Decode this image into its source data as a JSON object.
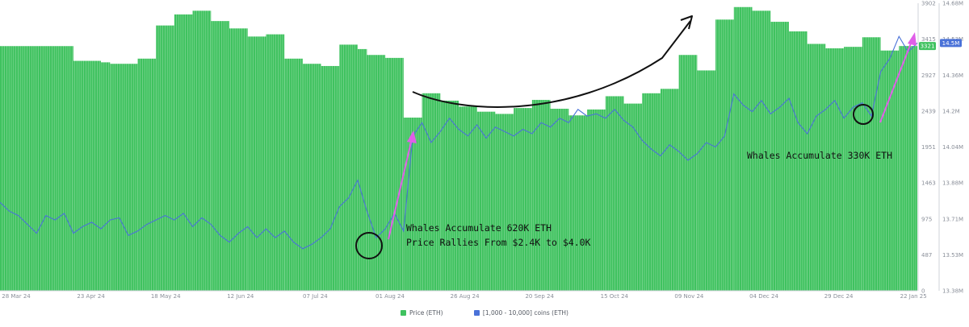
{
  "chart_data": {
    "type": "bar",
    "title": "",
    "xlabel": "",
    "ylabel": "",
    "x_ticks": [
      "28 Mar 24",
      "23 Apr 24",
      "18 May 24",
      "12 Jun 24",
      "07 Jul 24",
      "01 Aug 24",
      "26 Aug 24",
      "20 Sep 24",
      "15 Oct 24",
      "09 Nov 24",
      "04 Dec 24",
      "29 Dec 24",
      "22 Jan 25"
    ],
    "y_left": {
      "ticks": [
        "0",
        "487",
        "975",
        "1463",
        "1951",
        "2439",
        "2927",
        "3415",
        "3902"
      ],
      "ylim": [
        0,
        3902
      ]
    },
    "y_right": {
      "ticks": [
        "13.38M",
        "13.53M",
        "13.71M",
        "13.88M",
        "14.04M",
        "14.2M",
        "14.36M",
        "14.53M",
        "14.68M"
      ],
      "ylim": [
        13.38,
        14.68
      ]
    },
    "badges": {
      "price": "3321",
      "coins": "14.5M"
    },
    "series": [
      {
        "name": "Price (ETH)",
        "kind": "bar",
        "color": "#3fc25f",
        "segments": [
          [
            0,
            8,
            3320
          ],
          [
            8,
            11,
            3120
          ],
          [
            11,
            12,
            3100
          ],
          [
            12,
            15,
            3080
          ],
          [
            15,
            17,
            3150
          ],
          [
            17,
            19,
            3600
          ],
          [
            19,
            21,
            3750
          ],
          [
            21,
            23,
            3800
          ],
          [
            23,
            25,
            3660
          ],
          [
            25,
            27,
            3560
          ],
          [
            27,
            29,
            3450
          ],
          [
            29,
            31,
            3480
          ],
          [
            31,
            33,
            3150
          ],
          [
            33,
            35,
            3080
          ],
          [
            35,
            37,
            3050
          ],
          [
            37,
            39,
            3340
          ],
          [
            39,
            40,
            3280
          ],
          [
            40,
            42,
            3200
          ],
          [
            42,
            44,
            3160
          ],
          [
            44,
            46,
            2350
          ],
          [
            46,
            48,
            2680
          ],
          [
            48,
            50,
            2580
          ],
          [
            50,
            52,
            2500
          ],
          [
            52,
            54,
            2430
          ],
          [
            54,
            56,
            2400
          ],
          [
            56,
            58,
            2480
          ],
          [
            58,
            60,
            2590
          ],
          [
            60,
            62,
            2470
          ],
          [
            62,
            64,
            2380
          ],
          [
            64,
            66,
            2460
          ],
          [
            66,
            68,
            2640
          ],
          [
            68,
            70,
            2540
          ],
          [
            70,
            72,
            2680
          ],
          [
            72,
            74,
            2740
          ],
          [
            74,
            76,
            3200
          ],
          [
            76,
            78,
            2990
          ],
          [
            78,
            80,
            3680
          ],
          [
            80,
            82,
            3850
          ],
          [
            82,
            84,
            3800
          ],
          [
            84,
            86,
            3650
          ],
          [
            86,
            88,
            3520
          ],
          [
            88,
            90,
            3350
          ],
          [
            90,
            92,
            3290
          ],
          [
            92,
            94,
            3310
          ],
          [
            94,
            96,
            3440
          ],
          [
            96,
            98,
            3260
          ],
          [
            98,
            100,
            3321
          ]
        ]
      },
      {
        "name": "[1,000 - 10,000] coins (ETH)",
        "kind": "line",
        "color": "#4a72d8",
        "points": [
          [
            0,
            13.78
          ],
          [
            1,
            13.74
          ],
          [
            2,
            13.72
          ],
          [
            3,
            13.68
          ],
          [
            4,
            13.64
          ],
          [
            5,
            13.72
          ],
          [
            6,
            13.7
          ],
          [
            7,
            13.73
          ],
          [
            8,
            13.64
          ],
          [
            9,
            13.67
          ],
          [
            10,
            13.69
          ],
          [
            11,
            13.66
          ],
          [
            12,
            13.7
          ],
          [
            13,
            13.71
          ],
          [
            14,
            13.63
          ],
          [
            15,
            13.65
          ],
          [
            16,
            13.68
          ],
          [
            17,
            13.7
          ],
          [
            18,
            13.72
          ],
          [
            19,
            13.7
          ],
          [
            20,
            13.73
          ],
          [
            21,
            13.67
          ],
          [
            22,
            13.71
          ],
          [
            23,
            13.68
          ],
          [
            24,
            13.63
          ],
          [
            25,
            13.6
          ],
          [
            26,
            13.64
          ],
          [
            27,
            13.67
          ],
          [
            28,
            13.62
          ],
          [
            29,
            13.66
          ],
          [
            30,
            13.62
          ],
          [
            31,
            13.65
          ],
          [
            32,
            13.6
          ],
          [
            33,
            13.57
          ],
          [
            34,
            13.59
          ],
          [
            35,
            13.62
          ],
          [
            36,
            13.66
          ],
          [
            37,
            13.76
          ],
          [
            38,
            13.8
          ],
          [
            39,
            13.88
          ],
          [
            40,
            13.74
          ],
          [
            41,
            13.62
          ],
          [
            42,
            13.66
          ],
          [
            43,
            13.73
          ],
          [
            44,
            13.65
          ],
          [
            45,
            14.08
          ],
          [
            46,
            14.14
          ],
          [
            47,
            14.05
          ],
          [
            48,
            14.1
          ],
          [
            49,
            14.16
          ],
          [
            50,
            14.11
          ],
          [
            51,
            14.08
          ],
          [
            52,
            14.13
          ],
          [
            53,
            14.07
          ],
          [
            54,
            14.12
          ],
          [
            55,
            14.1
          ],
          [
            56,
            14.08
          ],
          [
            57,
            14.11
          ],
          [
            58,
            14.09
          ],
          [
            59,
            14.14
          ],
          [
            60,
            14.12
          ],
          [
            61,
            14.16
          ],
          [
            62,
            14.14
          ],
          [
            63,
            14.2
          ],
          [
            64,
            14.17
          ],
          [
            65,
            14.18
          ],
          [
            66,
            14.16
          ],
          [
            67,
            14.2
          ],
          [
            68,
            14.15
          ],
          [
            69,
            14.12
          ],
          [
            70,
            14.06
          ],
          [
            71,
            14.02
          ],
          [
            72,
            13.99
          ],
          [
            73,
            14.04
          ],
          [
            74,
            14.01
          ],
          [
            75,
            13.97
          ],
          [
            76,
            14.0
          ],
          [
            77,
            14.05
          ],
          [
            78,
            14.03
          ],
          [
            79,
            14.08
          ],
          [
            80,
            14.27
          ],
          [
            81,
            14.22
          ],
          [
            82,
            14.19
          ],
          [
            83,
            14.24
          ],
          [
            84,
            14.18
          ],
          [
            85,
            14.21
          ],
          [
            86,
            14.25
          ],
          [
            87,
            14.14
          ],
          [
            88,
            14.09
          ],
          [
            89,
            14.17
          ],
          [
            90,
            14.2
          ],
          [
            91,
            14.24
          ],
          [
            92,
            14.16
          ],
          [
            93,
            14.21
          ],
          [
            94,
            14.23
          ],
          [
            95,
            14.17
          ],
          [
            96,
            14.37
          ],
          [
            97,
            14.43
          ],
          [
            98,
            14.53
          ],
          [
            99,
            14.46
          ],
          [
            100,
            14.5
          ]
        ]
      }
    ],
    "annotations": [
      {
        "text": "Whales Accumulate 620K ETH"
      },
      {
        "text": "Price Rallies From $2.4K to $4.0K"
      },
      {
        "text": "Whales Accumulate 330K ETH"
      }
    ],
    "grid": false,
    "legend_position": "bottom-center"
  }
}
